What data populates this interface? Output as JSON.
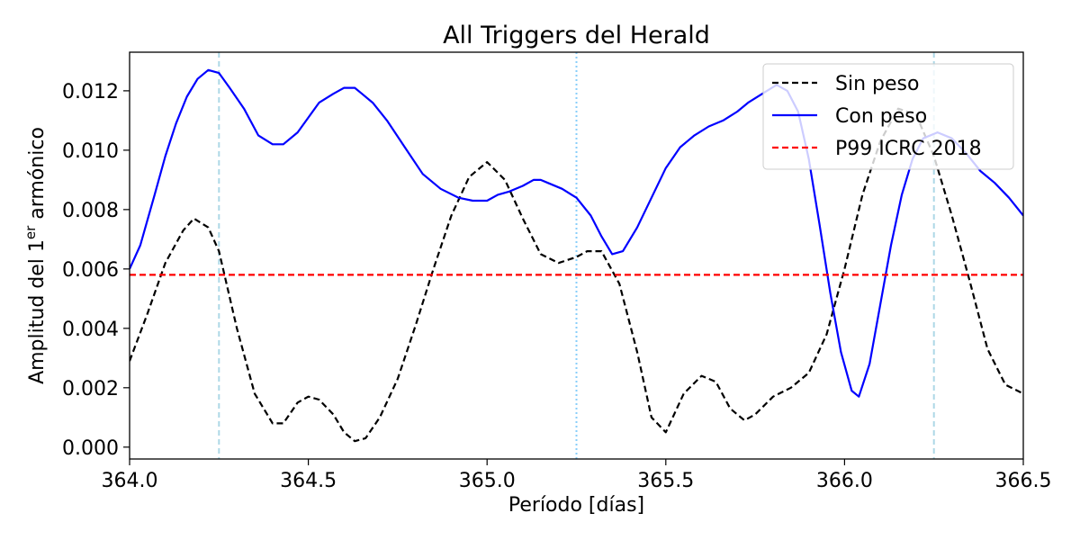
{
  "chart_data": {
    "type": "line",
    "title": "All Triggers del Herald",
    "xlabel": "Período [días]",
    "ylabel_main": "Amplitud del 1",
    "ylabel_sup": "er",
    "ylabel_tail": " armónico",
    "xlim": [
      364.0,
      366.5
    ],
    "ylim": [
      -0.0004,
      0.0133
    ],
    "xticks": [
      364.0,
      364.5,
      365.0,
      365.5,
      366.0,
      366.5
    ],
    "xtick_labels": [
      "364.0",
      "364.5",
      "365.0",
      "365.5",
      "366.0",
      "366.5"
    ],
    "yticks": [
      0.0,
      0.002,
      0.004,
      0.006,
      0.008,
      0.01,
      0.012
    ],
    "ytick_labels": [
      "0.000",
      "0.002",
      "0.004",
      "0.006",
      "0.008",
      "0.010",
      "0.012"
    ],
    "legend_position": "top-right",
    "series": [
      {
        "name": "Sin peso",
        "color": "#000000",
        "style": "dashed",
        "x": [
          364.0,
          364.05,
          364.1,
          364.15,
          364.18,
          364.22,
          364.25,
          364.3,
          364.35,
          364.4,
          364.43,
          364.47,
          364.5,
          364.53,
          364.57,
          364.6,
          364.63,
          364.66,
          364.7,
          364.75,
          364.8,
          364.85,
          364.9,
          364.95,
          365.0,
          365.05,
          365.1,
          365.15,
          365.2,
          365.25,
          365.28,
          365.32,
          365.37,
          365.42,
          365.46,
          365.5,
          365.55,
          365.6,
          365.64,
          365.68,
          365.72,
          365.75,
          365.8,
          365.85,
          365.9,
          365.95,
          366.0,
          366.05,
          366.1,
          366.15,
          366.2,
          366.25,
          366.3,
          366.35,
          366.4,
          366.45,
          366.5
        ],
        "y": [
          0.0029,
          0.0045,
          0.0062,
          0.0073,
          0.0077,
          0.0074,
          0.0066,
          0.004,
          0.0018,
          0.0008,
          0.0008,
          0.0015,
          0.0017,
          0.0016,
          0.0011,
          0.0005,
          0.0002,
          0.0003,
          0.001,
          0.0023,
          0.0041,
          0.006,
          0.0078,
          0.0091,
          0.0096,
          0.009,
          0.0077,
          0.0065,
          0.0062,
          0.0064,
          0.0066,
          0.0066,
          0.0055,
          0.0032,
          0.001,
          0.0005,
          0.0018,
          0.0024,
          0.0022,
          0.0013,
          0.0009,
          0.0011,
          0.0017,
          0.002,
          0.0025,
          0.0038,
          0.006,
          0.0085,
          0.0103,
          0.0114,
          0.0112,
          0.0098,
          0.0078,
          0.0056,
          0.0033,
          0.0021,
          0.0018
        ]
      },
      {
        "name": "Con peso",
        "color": "#0000ff",
        "style": "solid",
        "x": [
          364.0,
          364.03,
          364.07,
          364.1,
          364.13,
          364.16,
          364.19,
          364.22,
          364.25,
          364.28,
          364.32,
          364.36,
          364.4,
          364.43,
          364.47,
          364.5,
          364.53,
          364.57,
          364.6,
          364.63,
          364.65,
          364.68,
          364.72,
          364.77,
          364.82,
          364.87,
          364.92,
          364.96,
          365.0,
          365.03,
          365.06,
          365.1,
          365.13,
          365.15,
          365.17,
          365.21,
          365.25,
          365.29,
          365.32,
          365.35,
          365.38,
          365.42,
          365.46,
          365.5,
          365.54,
          365.58,
          365.62,
          365.66,
          365.7,
          365.73,
          365.77,
          365.81,
          365.84,
          365.87,
          365.9,
          365.93,
          365.96,
          365.99,
          366.02,
          366.04,
          366.07,
          366.1,
          366.13,
          366.16,
          366.19,
          366.22,
          366.26,
          366.3,
          366.34,
          366.38,
          366.42,
          366.46,
          366.5
        ],
        "y": [
          0.006,
          0.0068,
          0.0085,
          0.0098,
          0.0109,
          0.0118,
          0.0124,
          0.0127,
          0.0126,
          0.0121,
          0.0114,
          0.0105,
          0.0102,
          0.0102,
          0.0106,
          0.0111,
          0.0116,
          0.0119,
          0.0121,
          0.0121,
          0.0119,
          0.0116,
          0.011,
          0.0101,
          0.0092,
          0.0087,
          0.0084,
          0.0083,
          0.0083,
          0.0085,
          0.0086,
          0.0088,
          0.009,
          0.009,
          0.0089,
          0.0087,
          0.0084,
          0.0078,
          0.0071,
          0.0065,
          0.0066,
          0.0074,
          0.0084,
          0.0094,
          0.0101,
          0.0105,
          0.0108,
          0.011,
          0.0113,
          0.0116,
          0.0119,
          0.0122,
          0.012,
          0.0113,
          0.0097,
          0.0075,
          0.0052,
          0.0032,
          0.0019,
          0.0017,
          0.0028,
          0.0048,
          0.0068,
          0.0085,
          0.0097,
          0.0104,
          0.0106,
          0.0104,
          0.0099,
          0.0093,
          0.0089,
          0.0084,
          0.0078
        ]
      },
      {
        "name": "P99 ICRC 2018",
        "color": "#ff0000",
        "style": "dashed",
        "x": [
          364.0,
          366.5
        ],
        "y": [
          0.0058,
          0.0058
        ]
      }
    ],
    "vlines": [
      {
        "x": 364.25,
        "color": "#add8e6",
        "style": "dashed"
      },
      {
        "x": 365.25,
        "color": "#87cefa",
        "style": "dotted"
      },
      {
        "x": 366.25,
        "color": "#add8e6",
        "style": "dashed"
      }
    ],
    "grid": false
  }
}
